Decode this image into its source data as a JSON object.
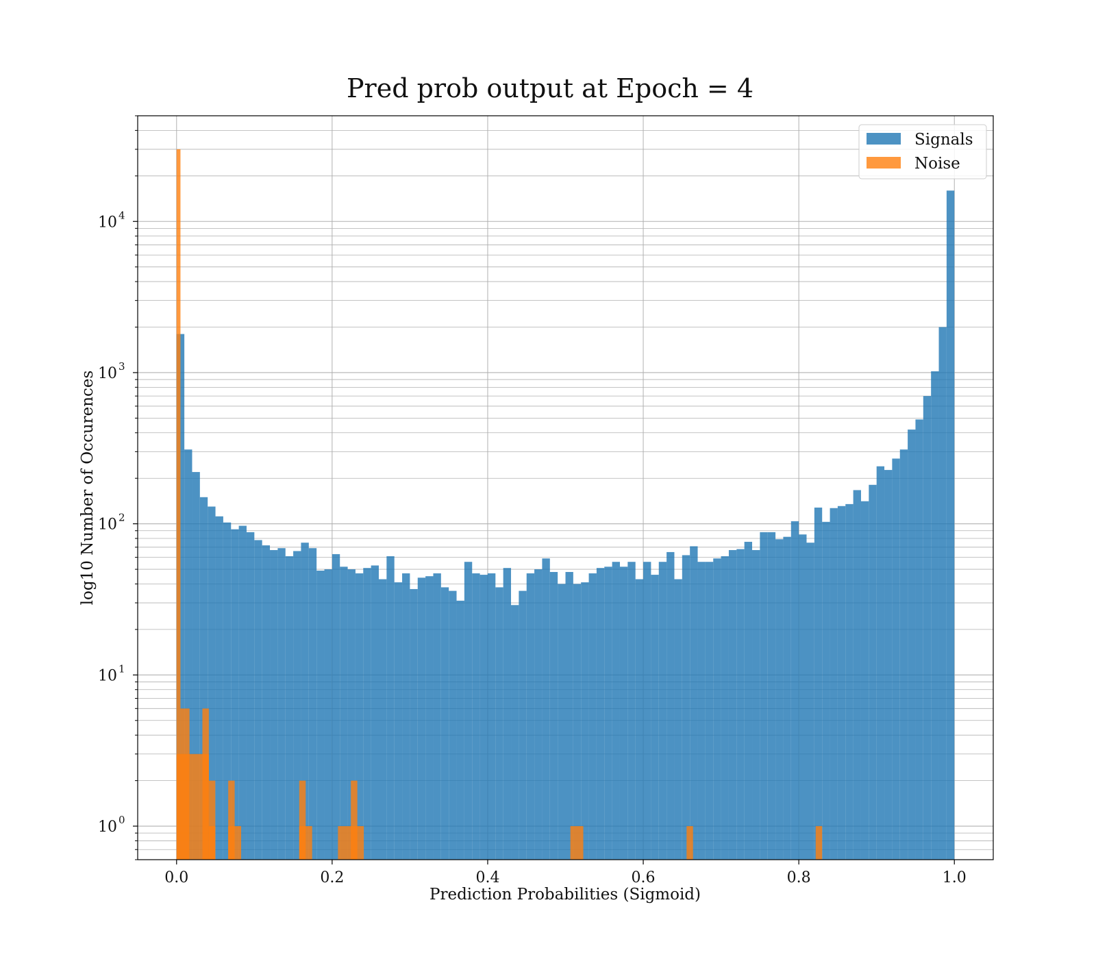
{
  "chart_data": {
    "type": "bar",
    "title": "Pred prob output at Epoch = 4",
    "xlabel": "Prediction Probabilities (Sigmoid)",
    "ylabel": "log10 Number of Occurences",
    "yscale": "log",
    "xlim": [
      -0.05,
      1.05
    ],
    "ylim": [
      0.6,
      50000
    ],
    "xticks": [
      0.0,
      0.2,
      0.4,
      0.6,
      0.8,
      1.0
    ],
    "xtick_labels": [
      "0.0",
      "0.2",
      "0.4",
      "0.6",
      "0.8",
      "1.0"
    ],
    "yticks": [
      {
        "value": 1,
        "base": "10",
        "exp": "0"
      },
      {
        "value": 10,
        "base": "10",
        "exp": "1"
      },
      {
        "value": 100,
        "base": "10",
        "exp": "2"
      },
      {
        "value": 1000,
        "base": "10",
        "exp": "3"
      },
      {
        "value": 10000,
        "base": "10",
        "exp": "4"
      }
    ],
    "grid": true,
    "legend_position": "top-right",
    "bin_width": 0.01,
    "series": [
      {
        "name": "Signals",
        "color": "#1f77b4",
        "bin_start": 0.0,
        "values": [
          1800,
          310,
          220,
          150,
          130,
          112,
          102,
          92,
          97,
          88,
          78,
          72,
          67,
          69,
          61,
          66,
          75,
          69,
          49,
          50,
          63,
          52,
          50,
          47,
          51,
          53,
          43,
          61,
          41,
          47,
          37,
          44,
          45,
          47,
          38,
          36,
          31,
          56,
          47,
          46,
          47,
          38,
          51,
          29,
          36,
          47,
          50,
          59,
          48,
          40,
          48,
          40,
          41,
          47,
          51,
          52,
          56,
          52,
          56,
          43,
          56,
          46,
          56,
          65,
          43,
          62,
          71,
          56,
          56,
          59,
          61,
          67,
          68,
          76,
          67,
          88,
          88,
          79,
          82,
          104,
          85,
          75,
          128,
          103,
          127,
          131,
          135,
          167,
          141,
          181,
          240,
          227,
          270,
          310,
          420,
          490,
          700,
          1020,
          2000,
          16000
        ]
      },
      {
        "name": "Noise",
        "color": "#ff7f0e",
        "bin_start": 0.0,
        "values": [
          30000,
          6,
          6,
          3,
          3,
          6,
          3,
          3,
          3,
          0,
          0,
          0,
          0,
          0,
          0,
          0,
          0,
          1,
          0,
          0,
          0,
          0,
          0,
          0,
          0,
          0,
          0,
          0,
          0,
          0,
          0,
          0,
          0,
          0,
          0,
          0,
          0,
          0,
          0,
          0,
          0,
          0,
          0,
          0,
          0,
          0,
          0,
          0,
          0,
          0,
          0,
          0,
          0,
          0,
          0,
          0,
          0,
          0,
          0,
          0,
          0,
          0,
          0,
          0,
          0,
          0,
          0,
          0,
          0,
          0,
          0,
          0,
          0,
          0,
          0,
          0,
          0,
          0,
          0,
          0,
          0,
          0,
          0,
          0,
          0,
          0,
          0,
          0,
          0,
          0,
          0,
          0,
          0,
          0,
          0,
          0,
          0,
          0,
          0,
          0
        ],
        "note_bins": [
          {
            "x0": 0.0,
            "x1": 0.005,
            "count": 30000
          },
          {
            "x0": 0.005,
            "x1": 0.0166,
            "count": 6
          },
          {
            "x0": 0.0,
            "x1": 0.0166,
            "count": 3
          },
          {
            "x0": 0.0166,
            "x1": 0.0332,
            "count": 3
          },
          {
            "x0": 0.0332,
            "x1": 0.0415,
            "count": 6
          },
          {
            "x0": 0.0332,
            "x1": 0.0415,
            "count": 3
          },
          {
            "x0": 0.0415,
            "x1": 0.0498,
            "count": 2
          },
          {
            "x0": 0.0415,
            "x1": 0.0498,
            "count": 1
          },
          {
            "x0": 0.0664,
            "x1": 0.0747,
            "count": 2
          },
          {
            "x0": 0.0664,
            "x1": 0.083,
            "count": 1
          },
          {
            "x0": 0.1577,
            "x1": 0.166,
            "count": 2
          },
          {
            "x0": 0.1577,
            "x1": 0.1743,
            "count": 1
          },
          {
            "x0": 0.2241,
            "x1": 0.2324,
            "count": 2
          },
          {
            "x0": 0.2075,
            "x1": 0.2407,
            "count": 1
          },
          {
            "x0": 0.5063,
            "x1": 0.5229,
            "count": 1
          },
          {
            "x0": 0.6557,
            "x1": 0.664,
            "count": 1
          },
          {
            "x0": 0.8217,
            "x1": 0.83,
            "count": 1
          }
        ]
      }
    ]
  }
}
